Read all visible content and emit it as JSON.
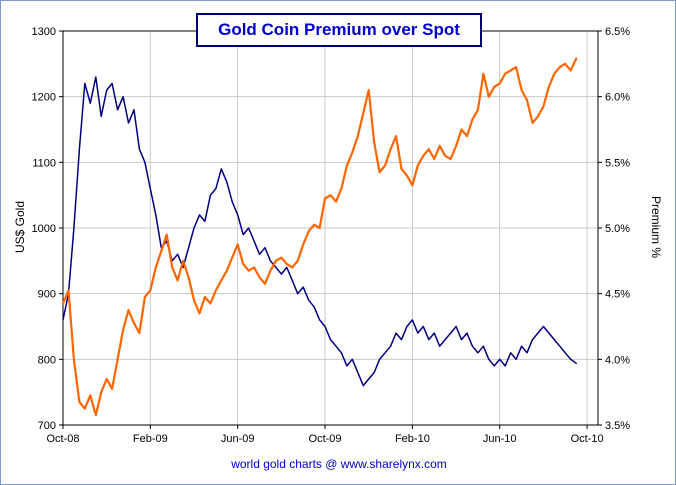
{
  "chart_data": {
    "type": "line",
    "title": "Gold Coin Premium over Spot",
    "caption": "world gold charts @ www.sharelynx.com",
    "legend": "none",
    "grid": "on",
    "colors": {
      "gold_line": "#ff6600",
      "premium_line": "#000080",
      "title_text": "#0000cd",
      "caption_text": "#0000cd",
      "gridline": "#c9c9c9",
      "plot_border": "#000000",
      "frame": "#7b9cc4",
      "title_box_border": "#000066"
    },
    "x_axis": {
      "unit": "months since Oct-2008",
      "range_months": [
        0,
        24.5
      ],
      "tick_months": [
        0,
        4,
        8,
        12,
        16,
        20,
        24
      ],
      "tick_labels": [
        "Oct-08",
        "Feb-09",
        "Jun-09",
        "Oct-09",
        "Feb-10",
        "Jun-10",
        "Oct-10"
      ]
    },
    "left_axis": {
      "label": "US$ Gold",
      "min": 700,
      "max": 1300,
      "tick_step": 100,
      "tick_values": [
        700,
        800,
        900,
        1000,
        1100,
        1200,
        1300
      ],
      "tick_labels": [
        "700",
        "800",
        "900",
        "1000",
        "1100",
        "1200",
        "1300"
      ]
    },
    "right_axis": {
      "label": "Premium  %",
      "min": 3.5,
      "max": 6.5,
      "tick_step": 0.5,
      "tick_values": [
        3.5,
        4.0,
        4.5,
        5.0,
        5.5,
        6.0,
        6.5
      ],
      "tick_labels": [
        "3.5%",
        "4.0%",
        "4.5%",
        "5.0%",
        "5.5%",
        "6.0%",
        "6.5%"
      ]
    },
    "series": [
      {
        "name": "Gold Coin Premium %",
        "data_name": "coin-premium-line",
        "axis": "right",
        "color": "#000080",
        "stroke_width": 1.5,
        "x_start_months": 0,
        "x_step_months": 0.25,
        "values": [
          4.3,
          4.5,
          5.0,
          5.6,
          6.1,
          5.95,
          6.15,
          5.85,
          6.05,
          6.1,
          5.9,
          6.0,
          5.8,
          5.9,
          5.6,
          5.5,
          5.3,
          5.1,
          4.85,
          4.9,
          4.75,
          4.8,
          4.7,
          4.85,
          5.0,
          5.1,
          5.05,
          5.25,
          5.3,
          5.45,
          5.35,
          5.2,
          5.1,
          4.95,
          5.0,
          4.9,
          4.8,
          4.85,
          4.75,
          4.7,
          4.65,
          4.7,
          4.6,
          4.5,
          4.55,
          4.45,
          4.4,
          4.3,
          4.25,
          4.15,
          4.1,
          4.05,
          3.95,
          4.0,
          3.9,
          3.8,
          3.85,
          3.9,
          4.0,
          4.05,
          4.1,
          4.2,
          4.15,
          4.25,
          4.3,
          4.2,
          4.25,
          4.15,
          4.2,
          4.1,
          4.15,
          4.2,
          4.25,
          4.15,
          4.2,
          4.1,
          4.05,
          4.1,
          4.0,
          3.95,
          4.0,
          3.95,
          4.05,
          4.0,
          4.1,
          4.05,
          4.15,
          4.2,
          4.25,
          4.2,
          4.15,
          4.1,
          4.05,
          4.0,
          3.97
        ]
      },
      {
        "name": "US$ Gold",
        "data_name": "gold-price-line",
        "axis": "left",
        "color": "#ff6600",
        "stroke_width": 2.2,
        "x_start_months": 0,
        "x_step_months": 0.25,
        "values": [
          885,
          905,
          800,
          735,
          725,
          745,
          715,
          750,
          770,
          755,
          800,
          845,
          875,
          855,
          840,
          895,
          905,
          940,
          965,
          990,
          940,
          920,
          950,
          925,
          890,
          870,
          895,
          885,
          905,
          920,
          935,
          955,
          975,
          945,
          935,
          940,
          925,
          915,
          935,
          950,
          955,
          945,
          940,
          950,
          975,
          995,
          1005,
          1000,
          1045,
          1050,
          1040,
          1060,
          1095,
          1115,
          1140,
          1175,
          1210,
          1130,
          1085,
          1095,
          1120,
          1140,
          1090,
          1080,
          1065,
          1095,
          1110,
          1120,
          1105,
          1125,
          1110,
          1105,
          1125,
          1150,
          1140,
          1165,
          1180,
          1235,
          1200,
          1215,
          1220,
          1235,
          1240,
          1245,
          1210,
          1195,
          1160,
          1170,
          1185,
          1215,
          1235,
          1245,
          1250,
          1240,
          1258
        ]
      }
    ]
  }
}
